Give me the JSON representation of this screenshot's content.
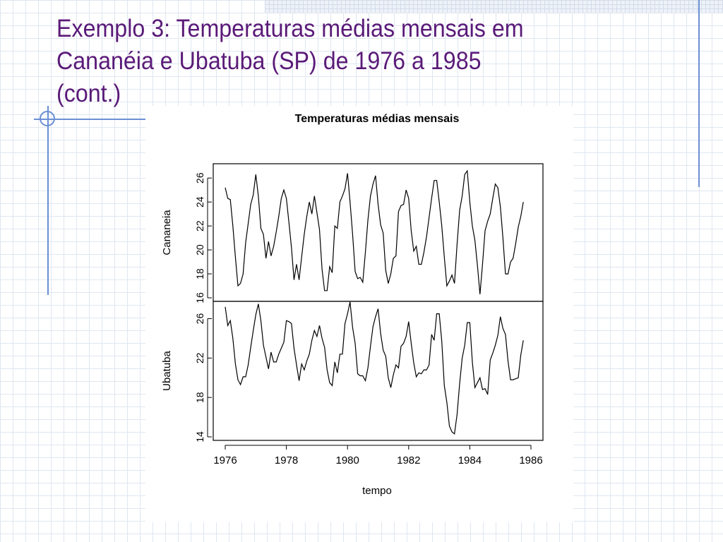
{
  "slide": {
    "title_lines": [
      "Exemplo 3: Temperaturas médias mensais em",
      "Cananéia e Ubatuba (SP)  de 1976 a 1985",
      "(cont.)"
    ],
    "title_color": "#5a1a78",
    "accent_color": "#6a8fd4",
    "grid_color": "#dfe7f1"
  },
  "chart_data": {
    "type": "line",
    "title": "Temperaturas médias mensais",
    "xlabel": "tempo",
    "x_start": 1976.0,
    "x_step": 0.0833333,
    "xlim": [
      1976,
      1986
    ],
    "x_ticks": [
      1976,
      1978,
      1980,
      1982,
      1984,
      1986
    ],
    "line_color": "#000000",
    "panels": [
      {
        "name": "Cananeia",
        "ylim": [
          16,
          26.9
        ],
        "y_ticks": [
          16,
          18,
          20,
          22,
          24,
          26
        ],
        "values": [
          25.2,
          24.3,
          24.2,
          22.0,
          19.4,
          17.0,
          17.2,
          18.0,
          20.6,
          22.2,
          23.8,
          24.6,
          26.3,
          24.5,
          21.8,
          21.3,
          19.3,
          20.7,
          19.5,
          20.3,
          21.5,
          22.8,
          24.3,
          25.0,
          24.3,
          22.3,
          20.2,
          17.5,
          18.8,
          17.5,
          19.4,
          21.3,
          22.8,
          24.0,
          23.0,
          24.5,
          23.1,
          21.7,
          18.4,
          16.6,
          16.6,
          18.6,
          18.1,
          22.0,
          21.8,
          24.0,
          24.5,
          25.1,
          26.4,
          24.0,
          21.3,
          18.2,
          17.6,
          17.7,
          17.3,
          19.8,
          22.5,
          24.5,
          25.5,
          26.2,
          23.8,
          22.1,
          21.4,
          18.3,
          17.2,
          18.0,
          19.3,
          19.5,
          23.2,
          23.7,
          23.8,
          25.0,
          24.3,
          21.6,
          19.9,
          20.3,
          18.8,
          18.8,
          19.8,
          21.1,
          22.7,
          24.3,
          25.8,
          25.8,
          24.0,
          22.0,
          19.4,
          17.0,
          17.4,
          17.9,
          17.2,
          20.5,
          23.3,
          24.5,
          26.3,
          26.6,
          24.0,
          22.0,
          20.8,
          18.7,
          16.3,
          18.8,
          21.6,
          22.4,
          23.0,
          24.3,
          25.5,
          25.2,
          23.6,
          21.0,
          18.0,
          18.0,
          19.0,
          19.3,
          20.5,
          21.9,
          22.8,
          24.0
        ]
      },
      {
        "name": "Ubatuba",
        "ylim": [
          14,
          27.4
        ],
        "y_ticks": [
          14,
          18,
          22,
          26
        ],
        "values": [
          27.2,
          25.3,
          25.8,
          24.0,
          21.4,
          19.8,
          19.3,
          20.1,
          20.1,
          21.3,
          23.1,
          24.8,
          26.4,
          27.5,
          25.8,
          23.3,
          22.1,
          20.9,
          22.6,
          21.6,
          21.6,
          22.4,
          23.0,
          23.6,
          25.8,
          25.7,
          25.5,
          23.0,
          21.3,
          19.7,
          21.4,
          20.8,
          21.7,
          22.4,
          23.8,
          24.8,
          24.2,
          25.3,
          24.0,
          23.1,
          20.8,
          19.5,
          19.2,
          21.6,
          20.5,
          22.4,
          22.4,
          25.5,
          26.5,
          27.7,
          25.1,
          23.5,
          20.4,
          20.2,
          20.2,
          19.7,
          21.0,
          23.2,
          25.2,
          26.2,
          27.0,
          24.5,
          22.8,
          22.2,
          20.0,
          19.0,
          20.3,
          21.3,
          21.0,
          23.2,
          23.5,
          24.2,
          25.7,
          23.5,
          21.5,
          20.1,
          20.5,
          20.4,
          20.8,
          20.8,
          21.3,
          24.4,
          23.8,
          26.5,
          26.5,
          23.7,
          19.2,
          17.5,
          15.1,
          14.5,
          14.3,
          16.3,
          19.4,
          22.0,
          23.3,
          25.6,
          25.6,
          21.6,
          19.0,
          19.5,
          20.0,
          18.8,
          18.9,
          18.3,
          21.8,
          22.5,
          23.3,
          24.3,
          26.2,
          25.0,
          24.4,
          21.7,
          19.8,
          19.8,
          19.9,
          20.0,
          22.3,
          23.8
        ]
      }
    ]
  }
}
